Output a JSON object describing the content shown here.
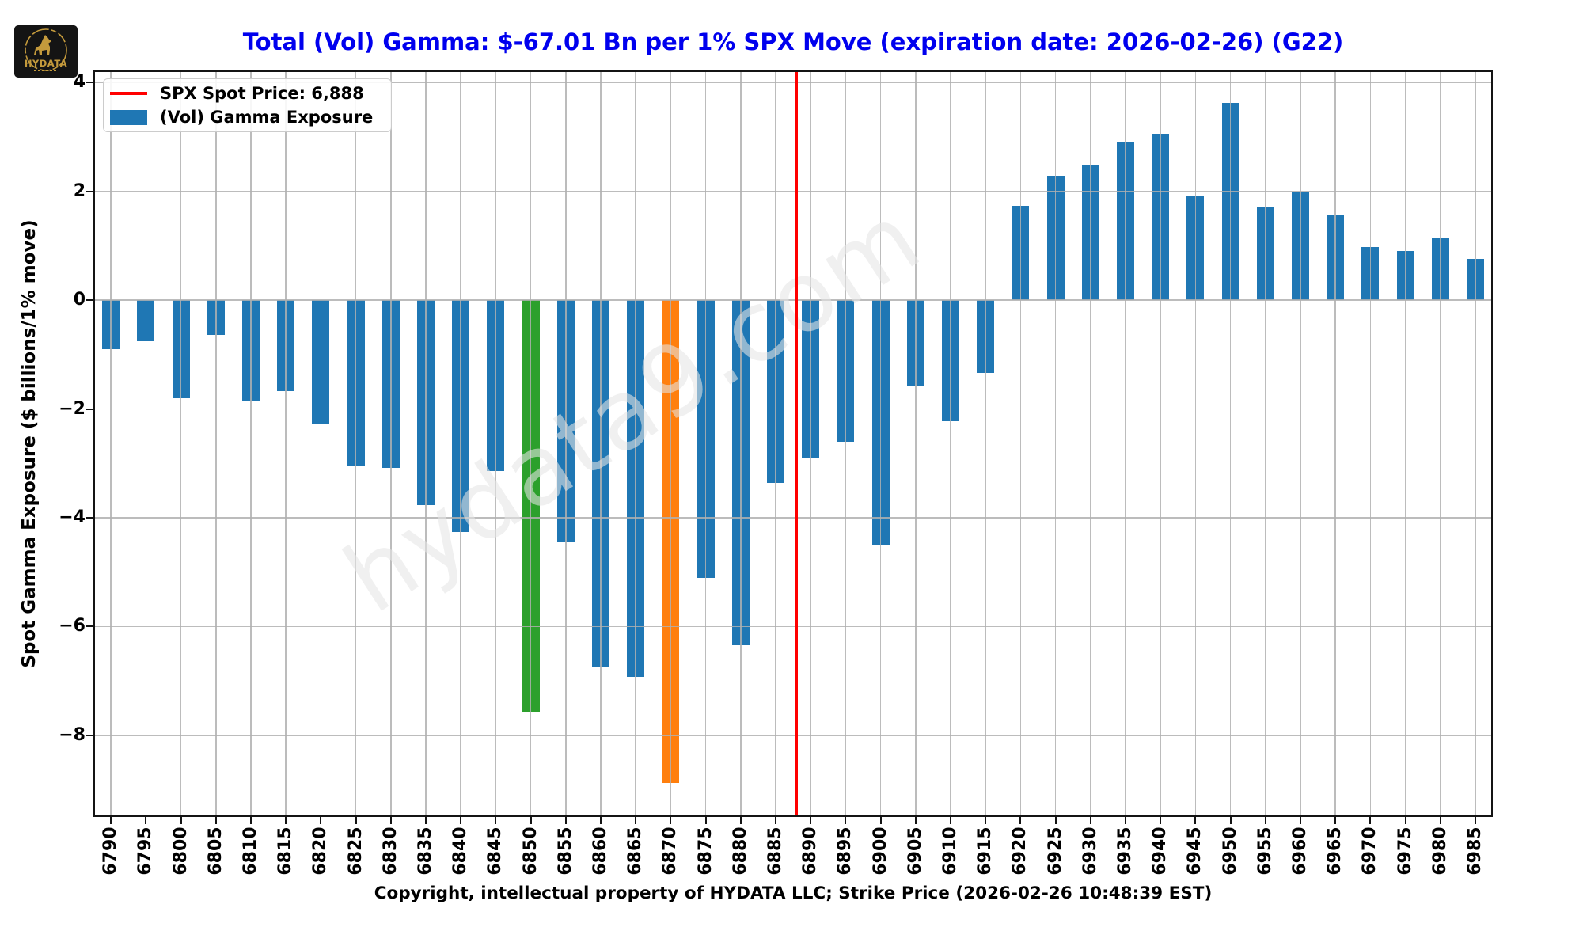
{
  "title": {
    "text": "Total (Vol) Gamma: $-67.01 Bn per 1% SPX Move (expiration date: 2026-02-26) (G22)"
  },
  "logo": {
    "text": "HYDATA"
  },
  "legend": {
    "items": [
      {
        "label": "SPX Spot Price: 6,888",
        "swatch": "line"
      },
      {
        "label": "(Vol) Gamma Exposure",
        "swatch": "patch"
      }
    ]
  },
  "y_axis": {
    "label": "Spot Gamma Exposure ($ billions/1% move)",
    "tick_values": [
      4,
      2,
      0,
      -2,
      -4,
      -6,
      -8
    ],
    "tick_labels": [
      "4",
      "2",
      "0",
      "−2",
      "−4",
      "−6",
      "−8"
    ]
  },
  "caption": "Copyright, intellectual property of HYDATA LLC; Strike Price (2026-02-26 10:48:39 EST)",
  "watermark": "hydata9.com",
  "colors": {
    "title": "#0000EE",
    "bar_default": "#1F77B4",
    "bar_green": "#2CA02C",
    "bar_orange": "#FF7F0E",
    "spot_line": "#FF0000",
    "grid": "#B0B0B0",
    "gold": "#C49A3C"
  },
  "chart_data": {
    "type": "bar",
    "title": "Total (Vol) Gamma: $-67.01 Bn per 1% SPX Move (expiration date: 2026-02-26) (G22)",
    "xlabel": "",
    "ylabel": "Spot Gamma Exposure ($ billions/1% move)",
    "total_gamma_bn": -67.01,
    "categories": [
      6790,
      6795,
      6800,
      6805,
      6810,
      6815,
      6820,
      6825,
      6830,
      6835,
      6840,
      6845,
      6850,
      6855,
      6860,
      6865,
      6870,
      6875,
      6880,
      6885,
      6890,
      6895,
      6900,
      6905,
      6910,
      6915,
      6920,
      6925,
      6930,
      6935,
      6940,
      6945,
      6950,
      6955,
      6960,
      6965,
      6970,
      6975,
      6980,
      6985
    ],
    "values": [
      -0.9,
      -0.76,
      -1.81,
      -0.64,
      -1.85,
      -1.67,
      -2.27,
      -3.05,
      -3.08,
      -3.77,
      -4.26,
      -3.14,
      -7.57,
      -4.45,
      -6.75,
      -6.93,
      -8.88,
      -5.11,
      -6.35,
      -3.36,
      -2.9,
      -2.61,
      -4.5,
      -1.57,
      -2.23,
      -1.34,
      1.73,
      2.29,
      2.47,
      2.91,
      3.06,
      1.92,
      3.62,
      1.72,
      1.99,
      1.56,
      0.97,
      0.9,
      1.13,
      0.76
    ],
    "highlight_bars": [
      {
        "strike": 6850,
        "color": "#2CA02C"
      },
      {
        "strike": 6870,
        "color": "#FF7F0E"
      }
    ],
    "spot_line": {
      "strike": 6888,
      "label": "SPX Spot Price: 6,888",
      "color": "#FF0000"
    },
    "series_name": "(Vol) Gamma Exposure",
    "ylim": [
      -9.5,
      4.22
    ],
    "grid": true,
    "grid_above_bars": true,
    "legend_position": "upper left",
    "x_tick_rotation": 90
  }
}
